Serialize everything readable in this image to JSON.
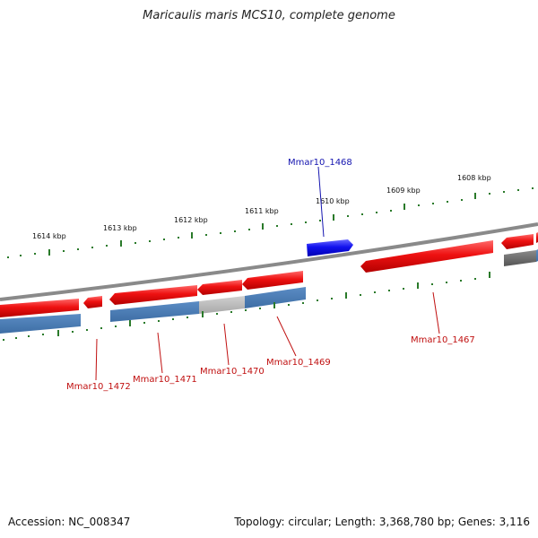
{
  "header": {
    "title": "Maricaulis maris MCS10, complete genome"
  },
  "footer": {
    "accession": "Accession: NC_008347",
    "summary": "Topology: circular; Length: 3,368,780 bp; Genes: 3,116"
  },
  "scale": {
    "ticks": [
      "1614 kbp",
      "1613 kbp",
      "1612 kbp",
      "1611 kbp",
      "1610 kbp",
      "1609 kbp",
      "1608 kbp"
    ]
  },
  "genes": {
    "top_label": "Mmar10_1468",
    "bottom_labels": [
      "Mmar10_1472",
      "Mmar10_1471",
      "Mmar10_1470",
      "Mmar10_1469",
      "Mmar10_1467"
    ]
  },
  "colors": {
    "forward_gene": "#1010e0",
    "reverse_gene": "#e01010",
    "cds_track": "#4a7fb8",
    "grey_track": "#c0c0c0",
    "backbone": "#888888",
    "tick_mark": "#2a7a2a",
    "label_blue": "#1515b0",
    "label_red": "#c01010"
  }
}
